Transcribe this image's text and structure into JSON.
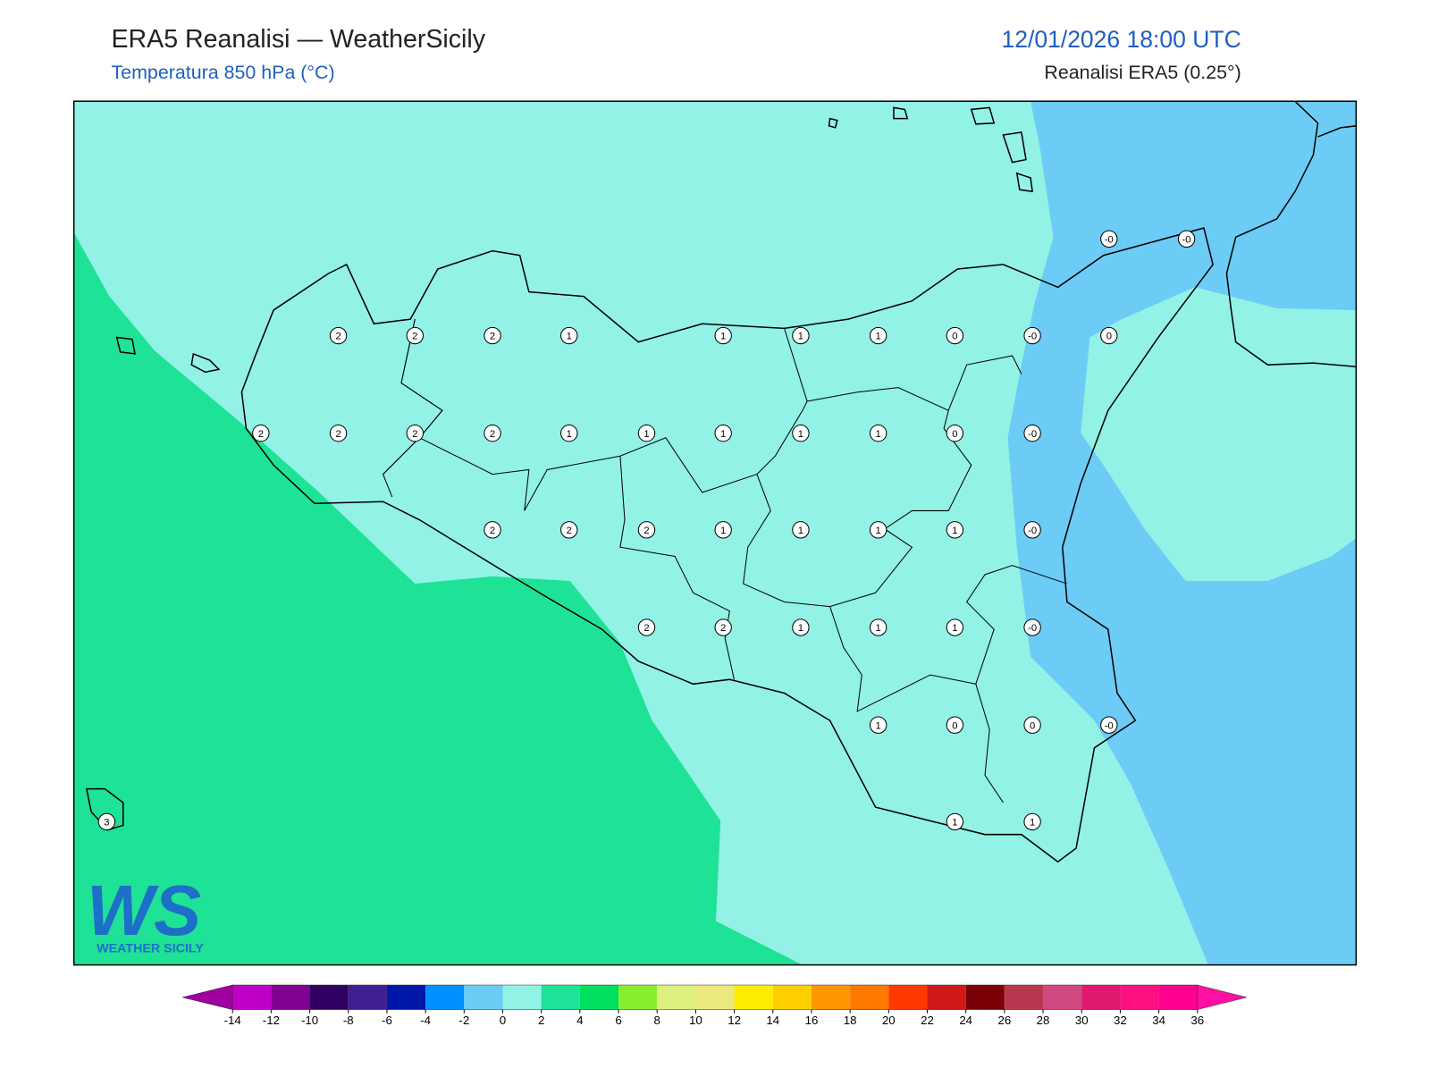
{
  "header": {
    "title": "ERA5 Reanalisi — WeatherSicily",
    "subtitle": "Temperatura 850 hPa (°C)",
    "datetime": "12/01/2026 18:00 UTC",
    "source": "Reanalisi ERA5 (0.25°)"
  },
  "stations": [
    "-0",
    "-0",
    "2",
    "2",
    "2",
    "1",
    "1",
    "1",
    "1",
    "0",
    "-0",
    "0",
    "2",
    "2",
    "2",
    "2",
    "1",
    "1",
    "1",
    "1",
    "1",
    "0",
    "-0",
    "2",
    "2",
    "2",
    "1",
    "1",
    "1",
    "1",
    "-0",
    "2",
    "2",
    "1",
    "1",
    "1",
    "-0",
    "1",
    "0",
    "0",
    "-0",
    "3",
    "1",
    "1"
  ],
  "logo": {
    "mark": "WS",
    "name": "WEATHER SICILY"
  },
  "colorbar": {
    "ticks": [
      -14,
      -12,
      -10,
      -8,
      -6,
      -4,
      -2,
      0,
      2,
      4,
      6,
      8,
      10,
      12,
      14,
      16,
      18,
      20,
      22,
      24,
      26,
      28,
      30,
      32,
      34,
      36
    ],
    "colors": [
      "#a000a0",
      "#c000c8",
      "#800090",
      "#300060",
      "#402090",
      "#0018a8",
      "#0090ff",
      "#6cccf5",
      "#92f2e6",
      "#1ee296",
      "#00e060",
      "#88ee30",
      "#dcf080",
      "#ece880",
      "#ffee00",
      "#ffd000",
      "#ff9800",
      "#ff7800",
      "#ff3800",
      "#d01818",
      "#7a0008",
      "#b83850",
      "#d04880",
      "#e01870",
      "#ff1080",
      "#ff0090",
      "#ff10a0"
    ]
  }
}
